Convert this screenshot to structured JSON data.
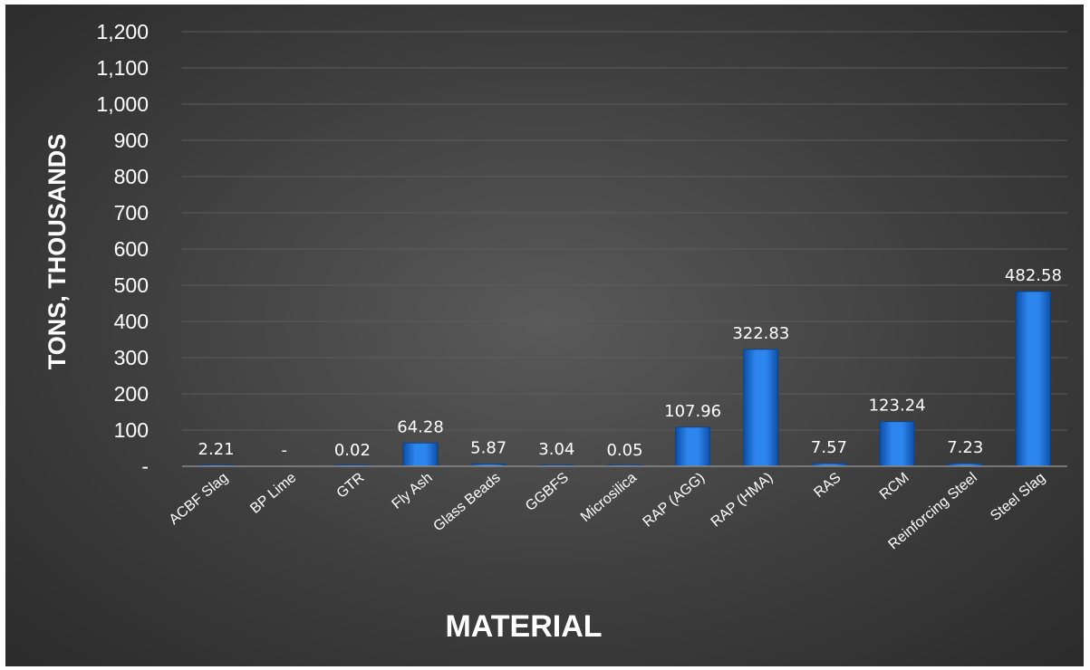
{
  "chart_data": {
    "type": "bar",
    "categories": [
      "ACBF Slag",
      "BP Lime",
      "GTR",
      "Fly Ash",
      "Glass Beads",
      "GGBFS",
      "Microsilica",
      "RAP (AGG)",
      "RAP (HMA)",
      "RAS",
      "RCM",
      "Reinforcing Steel",
      "Steel Slag"
    ],
    "values": [
      2.21,
      0,
      0.02,
      64.28,
      5.87,
      3.04,
      0.05,
      107.96,
      322.83,
      7.57,
      123.24,
      7.23,
      482.58
    ],
    "data_labels": [
      "2.21",
      "-",
      "0.02",
      "64.28",
      "5.87",
      "3.04",
      "0.05",
      "107.96",
      "322.83",
      "7.57",
      "123.24",
      "7.23",
      "482.58"
    ],
    "xlabel": "MATERIAL",
    "ylabel": "TONS, THOUSANDS",
    "ylim": [
      0,
      1200
    ],
    "yticks": [
      0,
      100,
      200,
      300,
      400,
      500,
      600,
      700,
      800,
      900,
      1000,
      1100,
      1200
    ],
    "ytick_labels": [
      "-",
      "100",
      "200",
      "300",
      "400",
      "500",
      "600",
      "700",
      "800",
      "900",
      "1,000",
      "1,100",
      "1,200"
    ],
    "grid": true,
    "legend": "none",
    "colors": {
      "background": "#3e3e3e",
      "bar": "#1f74dc",
      "grid": "#5c5c5c",
      "axis": "#8a8a8a",
      "text": "#ffffff"
    }
  }
}
